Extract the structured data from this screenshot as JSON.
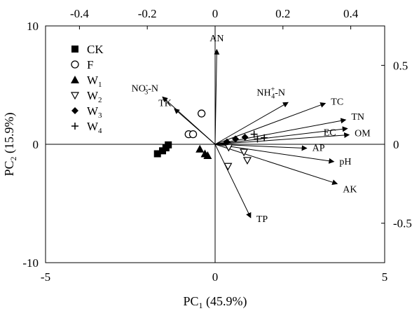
{
  "chart_data": {
    "type": "scatter",
    "subtype": "PCA biplot",
    "xlabel_main": "PC",
    "xlabel_sub": "1",
    "xlabel_rest": " (45.9%)",
    "ylabel_main": "PC",
    "ylabel_sub": "2",
    "ylabel_rest": " (15.9%)",
    "score_axes": {
      "xlim": [
        -5,
        5
      ],
      "ylim": [
        -10,
        10
      ],
      "xticks": [
        -5,
        0,
        5
      ],
      "yticks": [
        -10,
        0,
        10
      ]
    },
    "loading_axes": {
      "xlim": [
        -0.5,
        0.5
      ],
      "ylim": [
        -0.75,
        0.75
      ],
      "xticks": [
        -0.4,
        -0.2,
        0,
        0.2,
        0.4
      ],
      "yticks": [
        -0.5,
        0,
        0.5
      ]
    },
    "grid": false,
    "legend_position": "top-left",
    "series": [
      {
        "name": "CK",
        "name_sub": "",
        "marker": "square-filled",
        "points": [
          [
            -1.7,
            -0.8
          ],
          [
            -1.55,
            -0.55
          ],
          [
            -1.45,
            -0.3
          ],
          [
            -1.38,
            -0.05
          ]
        ]
      },
      {
        "name": "F",
        "name_sub": "",
        "marker": "circle-open",
        "points": [
          [
            -0.78,
            0.85
          ],
          [
            -0.65,
            0.85
          ],
          [
            -0.4,
            2.6
          ]
        ]
      },
      {
        "name": "W",
        "name_sub": "1",
        "marker": "triangle-filled",
        "points": [
          [
            -0.45,
            -0.4
          ],
          [
            -0.3,
            -0.8
          ],
          [
            -0.22,
            -0.95
          ]
        ]
      },
      {
        "name": "W",
        "name_sub": "2",
        "marker": "triangle-down-open",
        "points": [
          [
            0.4,
            -0.25
          ],
          [
            0.85,
            -0.65
          ],
          [
            0.95,
            -1.35
          ],
          [
            0.38,
            -1.85
          ]
        ]
      },
      {
        "name": "W",
        "name_sub": "3",
        "marker": "diamond-filled",
        "points": [
          [
            0.35,
            0.2
          ],
          [
            0.6,
            0.45
          ],
          [
            0.88,
            0.6
          ]
        ]
      },
      {
        "name": "W",
        "name_sub": "4",
        "marker": "plus",
        "points": [
          [
            1.15,
            0.85
          ],
          [
            1.25,
            0.45
          ],
          [
            1.45,
            0.55
          ]
        ]
      }
    ],
    "loadings": [
      {
        "label": "AN",
        "sup": "",
        "sub": "",
        "suffix": "",
        "x": 0.005,
        "y": 0.6
      },
      {
        "label": "NO",
        "sup": "-",
        "sub": "3",
        "suffix": "-N",
        "x": -0.155,
        "y": 0.3
      },
      {
        "label": "TK",
        "sup": "",
        "sub": "",
        "suffix": "",
        "x": -0.12,
        "y": 0.225
      },
      {
        "label": "NH",
        "sup": "+",
        "sub": "4",
        "suffix": "-N",
        "x": 0.215,
        "y": 0.265
      },
      {
        "label": "TC",
        "sup": "",
        "sub": "",
        "suffix": "",
        "x": 0.325,
        "y": 0.26
      },
      {
        "label": "TN",
        "sup": "",
        "sub": "",
        "suffix": "",
        "x": 0.385,
        "y": 0.155
      },
      {
        "label": "EC",
        "sup": "",
        "sub": "",
        "suffix": "",
        "x": 0.39,
        "y": 0.1
      },
      {
        "label": "OM",
        "sup": "",
        "sub": "",
        "suffix": "",
        "x": 0.395,
        "y": 0.06
      },
      {
        "label": "AP",
        "sup": "",
        "sub": "",
        "suffix": "",
        "x": 0.27,
        "y": -0.025
      },
      {
        "label": "pH",
        "sup": "",
        "sub": "",
        "suffix": "",
        "x": 0.35,
        "y": -0.11
      },
      {
        "label": "AK",
        "sup": "",
        "sub": "",
        "suffix": "",
        "x": 0.36,
        "y": -0.25
      },
      {
        "label": "TP",
        "sup": "",
        "sub": "",
        "suffix": "",
        "x": 0.105,
        "y": -0.465
      }
    ]
  }
}
